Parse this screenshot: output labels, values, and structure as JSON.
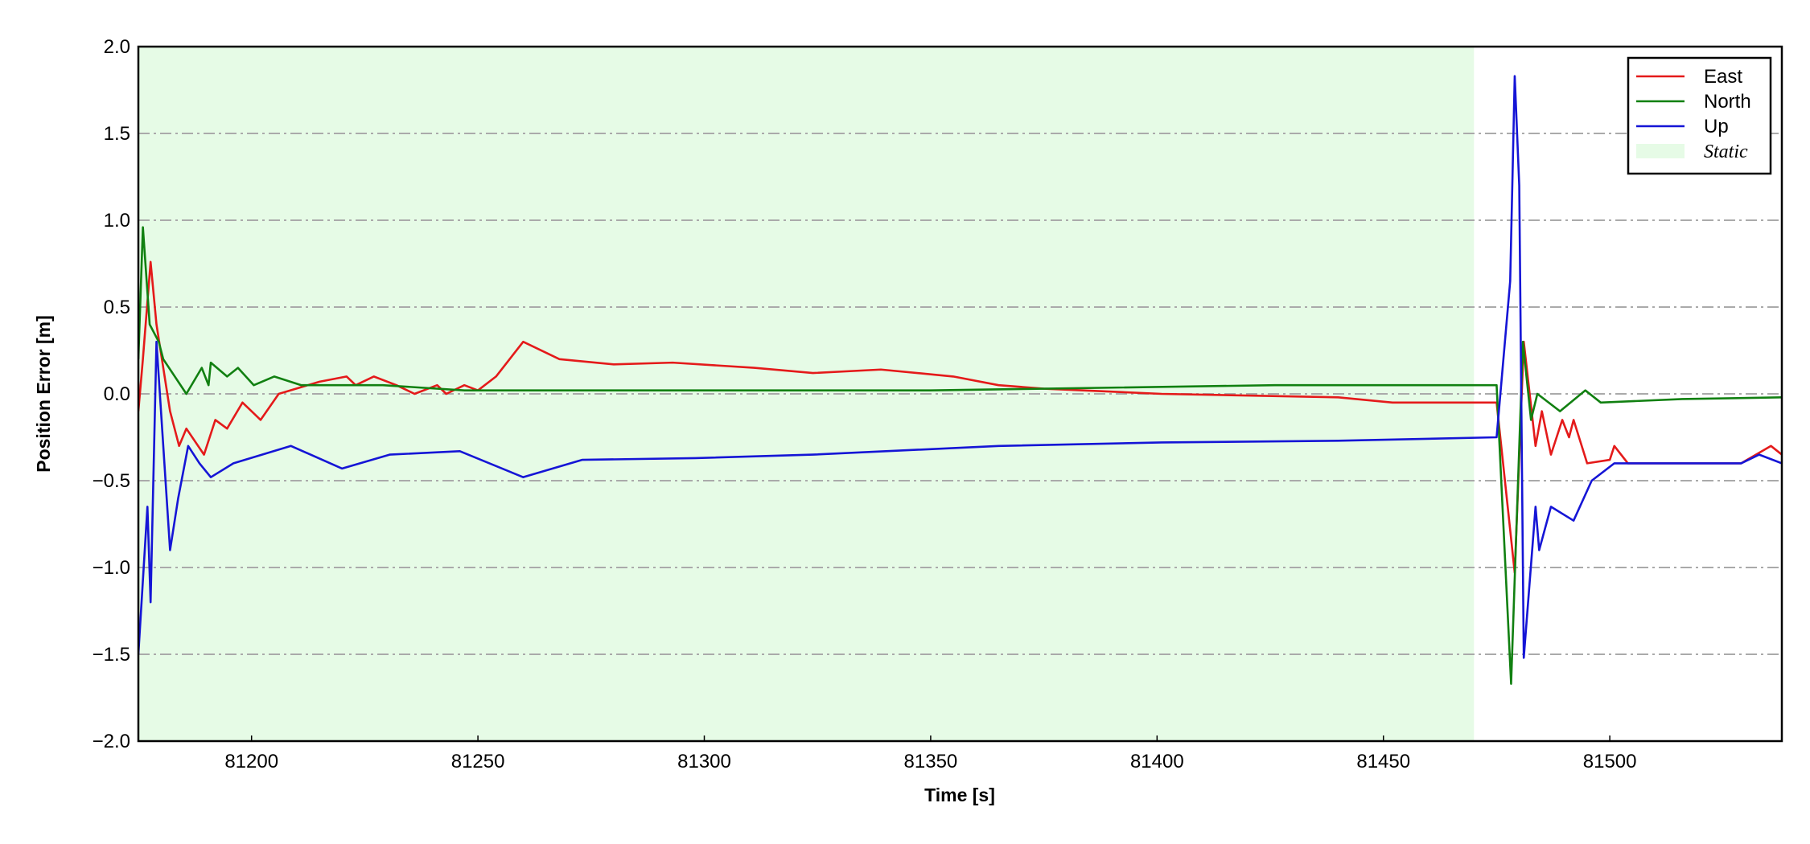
{
  "chart_data": {
    "type": "line",
    "xlabel": "Time [s]",
    "ylabel": "Position Error [m]",
    "xlim": [
      81175,
      81538
    ],
    "ylim": [
      -2.0,
      2.0
    ],
    "xticks": [
      81200,
      81250,
      81300,
      81350,
      81400,
      81450,
      81500
    ],
    "yticks": [
      {
        "value": -2.0,
        "label": "−2.0"
      },
      {
        "value": -1.5,
        "label": "−1.5"
      },
      {
        "value": -1.0,
        "label": "−1.0"
      },
      {
        "value": -0.5,
        "label": "−0.5"
      },
      {
        "value": 0.0,
        "label": "0.0"
      },
      {
        "value": 0.5,
        "label": "0.5"
      },
      {
        "value": 1.0,
        "label": "1.0"
      },
      {
        "value": 1.5,
        "label": "1.5"
      },
      {
        "value": 2.0,
        "label": "2.0"
      }
    ],
    "grid": true,
    "legend": "upper right",
    "spans": [
      {
        "name": "Static",
        "start": 81175,
        "end": 81470,
        "color": "#e6fbe6"
      }
    ],
    "series": [
      {
        "name": "East",
        "color": "#e41a1a",
        "x": [
          81175,
          81176,
          81177.7,
          81179,
          81182,
          81184,
          81185.6,
          81189.5,
          81192,
          81194.6,
          81198,
          81202,
          81206,
          81215,
          81221,
          81223,
          81227,
          81232,
          81236,
          81241,
          81243,
          81247,
          81250,
          81254,
          81260,
          81268,
          81280,
          81293,
          81311,
          81324,
          81339,
          81355,
          81365,
          81375,
          81401,
          81440,
          81452,
          81475,
          81479,
          81481,
          81483.6,
          81485,
          81487,
          81489.5,
          81491,
          81492,
          81495,
          81500,
          81501,
          81504,
          81529,
          81535.6,
          81538
        ],
        "values": [
          -0.1,
          0.2,
          0.76,
          0.4,
          -0.1,
          -0.3,
          -0.2,
          -0.35,
          -0.15,
          -0.2,
          -0.05,
          -0.15,
          0.0,
          0.07,
          0.1,
          0.05,
          0.1,
          0.05,
          0.0,
          0.05,
          0.0,
          0.05,
          0.02,
          0.1,
          0.3,
          0.2,
          0.17,
          0.18,
          0.15,
          0.12,
          0.14,
          0.1,
          0.05,
          0.03,
          0.0,
          -0.02,
          -0.05,
          -0.05,
          -1.03,
          0.3,
          -0.3,
          -0.1,
          -0.35,
          -0.15,
          -0.25,
          -0.15,
          -0.4,
          -0.38,
          -0.3,
          -0.4,
          -0.4,
          -0.3,
          -0.35
        ]
      },
      {
        "name": "North",
        "color": "#118011",
        "x": [
          81175,
          81176,
          81177.5,
          81179.5,
          81180.5,
          81185.6,
          81189,
          81190.5,
          81191,
          81194.6,
          81197,
          81200.5,
          81205,
          81211,
          81221,
          81229,
          81247,
          81298,
          81350,
          81375,
          81426,
          81464,
          81475,
          81478.2,
          81480.8,
          81482.6,
          81484,
          81489,
          81494.6,
          81498,
          81516,
          81538
        ],
        "values": [
          0.2,
          0.96,
          0.4,
          0.3,
          0.2,
          0.0,
          0.15,
          0.05,
          0.18,
          0.1,
          0.15,
          0.05,
          0.1,
          0.05,
          0.05,
          0.05,
          0.02,
          0.02,
          0.02,
          0.03,
          0.05,
          0.05,
          0.05,
          -1.67,
          0.3,
          -0.15,
          0.0,
          -0.1,
          0.02,
          -0.05,
          -0.03,
          -0.02
        ]
      },
      {
        "name": "Up",
        "color": "#1515d6",
        "x": [
          81175,
          81177,
          81177.7,
          81179,
          81182,
          81183.8,
          81186,
          81188.5,
          81191,
          81196,
          81208.7,
          81220,
          81230.5,
          81246,
          81260,
          81273,
          81298,
          81324,
          81365,
          81401,
          81440,
          81475,
          81478,
          81479,
          81480,
          81481,
          81483.6,
          81484.4,
          81487,
          81492,
          81496,
          81501,
          81529,
          81533,
          81538
        ],
        "values": [
          -1.5,
          -0.65,
          -1.2,
          0.3,
          -0.9,
          -0.6,
          -0.3,
          -0.4,
          -0.48,
          -0.4,
          -0.3,
          -0.43,
          -0.35,
          -0.33,
          -0.48,
          -0.38,
          -0.37,
          -0.35,
          -0.3,
          -0.28,
          -0.27,
          -0.25,
          0.65,
          1.83,
          1.2,
          -1.52,
          -0.65,
          -0.9,
          -0.65,
          -0.73,
          -0.5,
          -0.4,
          -0.4,
          -0.35,
          -0.4
        ]
      }
    ]
  }
}
